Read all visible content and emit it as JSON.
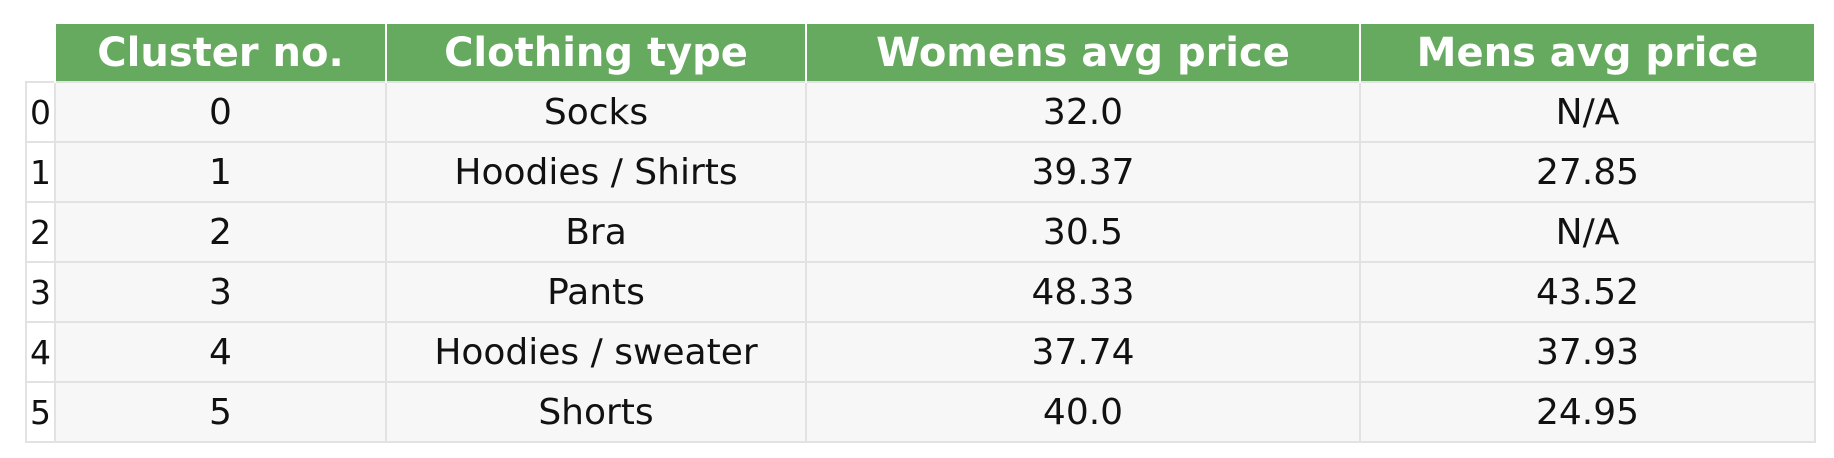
{
  "chart_data": {
    "type": "table",
    "index_column": [
      "0",
      "1",
      "2",
      "3",
      "4",
      "5"
    ],
    "columns": [
      "Cluster no.",
      "Clothing type",
      "Womens avg price",
      "Mens avg price"
    ],
    "rows": [
      [
        "0",
        "Socks",
        "32.0",
        "N/A"
      ],
      [
        "1",
        "Hoodies / Shirts",
        "39.37",
        "27.85"
      ],
      [
        "2",
        "Bra",
        "30.5",
        "N/A"
      ],
      [
        "3",
        "Pants",
        "48.33",
        "43.52"
      ],
      [
        "4",
        "Hoodies / sweater",
        "37.74",
        "37.93"
      ],
      [
        "5",
        "Shorts",
        "40.0",
        "24.95"
      ]
    ],
    "colors": {
      "header_background": "#66aa5f",
      "header_text": "#ffffff",
      "cell_background": "#f7f7f7",
      "grid_lines": "#e2e2e2"
    }
  }
}
